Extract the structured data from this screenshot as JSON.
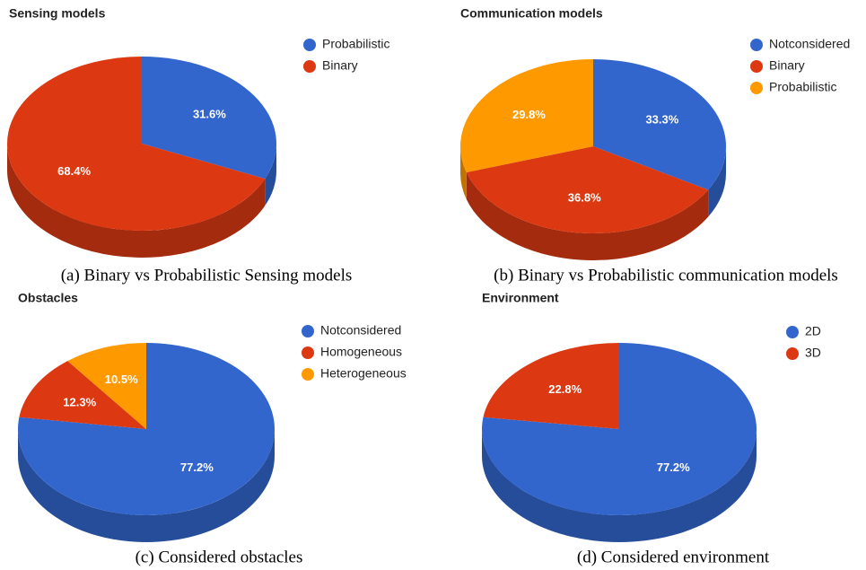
{
  "chart_data": [
    {
      "type": "pie3d",
      "title": "Sensing models",
      "caption": "(a) Binary vs Probabilistic Sensing models",
      "labels": [
        "Probabilistic",
        "Binary"
      ],
      "values": [
        31.6,
        68.4
      ],
      "value_labels": [
        "31.6%",
        "68.4%"
      ],
      "colors": [
        "#3366cc",
        "#dc3912"
      ],
      "legend": "right"
    },
    {
      "type": "pie3d",
      "title": "Communication models",
      "caption": "(b) Binary vs Probabilistic communication models",
      "labels": [
        "Notconsidered",
        "Binary",
        "Probabilistic"
      ],
      "values": [
        33.3,
        36.8,
        29.8
      ],
      "value_labels": [
        "33.3%",
        "36.8%",
        "29.8%"
      ],
      "colors": [
        "#3366cc",
        "#dc3912",
        "#ff9900"
      ],
      "legend": "right"
    },
    {
      "type": "pie3d",
      "title": "Obstacles",
      "caption": "(c) Considered obstacles",
      "labels": [
        "Notconsidered",
        "Homogeneous",
        "Heterogeneous"
      ],
      "values": [
        77.2,
        12.3,
        10.5
      ],
      "value_labels": [
        "77.2%",
        "12.3%",
        "10.5%"
      ],
      "colors": [
        "#3366cc",
        "#dc3912",
        "#ff9900"
      ],
      "legend": "right"
    },
    {
      "type": "pie3d",
      "title": "Environment",
      "caption": "(d) Considered environment",
      "labels": [
        "2D",
        "3D"
      ],
      "values": [
        77.2,
        22.8
      ],
      "value_labels": [
        "77.2%",
        "22.8%"
      ],
      "colors": [
        "#3366cc",
        "#dc3912"
      ],
      "legend": "right"
    }
  ]
}
